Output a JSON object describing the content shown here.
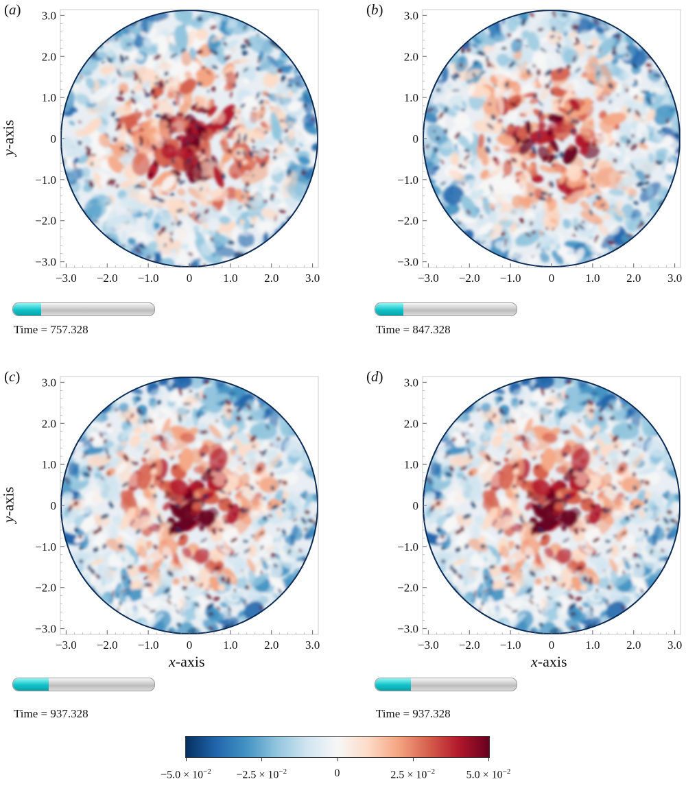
{
  "panels": [
    {
      "id": "a",
      "label_letter": "a",
      "time_prefix": "Time = ",
      "time_value": "757.328",
      "progress_fraction": 0.2,
      "show_ylabel": true,
      "show_xlabel": false,
      "seed": 11
    },
    {
      "id": "b",
      "label_letter": "b",
      "time_prefix": "Time = ",
      "time_value": "847.328",
      "progress_fraction": 0.2,
      "show_ylabel": false,
      "show_xlabel": false,
      "seed": 23
    },
    {
      "id": "c",
      "label_letter": "c",
      "time_prefix": "Time = ",
      "time_value": "937.328",
      "progress_fraction": 0.25,
      "show_ylabel": true,
      "show_xlabel": true,
      "seed": 37
    },
    {
      "id": "d",
      "label_letter": "d",
      "time_prefix": "Time = ",
      "time_value": "937.328",
      "progress_fraction": 0.25,
      "show_ylabel": false,
      "show_xlabel": true,
      "seed": 37
    }
  ],
  "axes": {
    "x_title_var": "x",
    "x_title_suffix": "-axis",
    "y_title_var": "y",
    "y_title_suffix": "-axis",
    "x_ticks": [
      "−3.0",
      "−2.0",
      "−1.0",
      "0",
      "1.0",
      "2.0",
      "3.0"
    ],
    "y_ticks": [
      "3.0",
      "2.0",
      "1.0",
      "0",
      "−1.0",
      "−2.0",
      "−3.0"
    ],
    "x_tick_values": [
      -3,
      -2,
      -1,
      0,
      1,
      2,
      3
    ],
    "y_tick_values": [
      3,
      2,
      1,
      0,
      -1,
      -2,
      -3
    ],
    "range": [
      -3.14,
      3.14
    ]
  },
  "colorbar": {
    "colors": [
      "#053061",
      "#2166ac",
      "#4393c3",
      "#92c5de",
      "#d1e5f0",
      "#f7f7f7",
      "#fddbc7",
      "#f4a582",
      "#d6604d",
      "#b2182b",
      "#67001f"
    ],
    "range": [
      -0.05,
      0.05
    ],
    "ticks": [
      {
        "value": -0.05,
        "mant": "−5.0 × 10",
        "exp": "−2"
      },
      {
        "value": -0.025,
        "mant": "−2.5 × 10",
        "exp": "−2"
      },
      {
        "value": 0,
        "mant": "0",
        "exp": ""
      },
      {
        "value": 0.025,
        "mant": "2.5 × 10",
        "exp": "−2"
      },
      {
        "value": 0.05,
        "mant": "5.0 × 10",
        "exp": "−2"
      }
    ]
  }
}
